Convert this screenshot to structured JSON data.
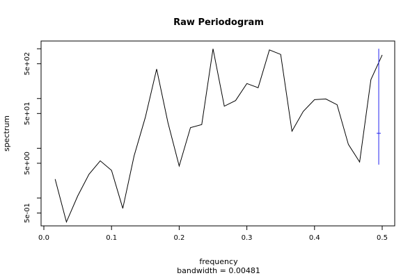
{
  "chart_data": {
    "type": "line",
    "title": "Raw Periodogram",
    "xlabel": "frequency",
    "sublabel": "bandwidth = 0.00481",
    "ylabel": "spectrum",
    "y_scale": "log",
    "xlim": [
      0.0,
      0.5
    ],
    "ylim": [
      0.2,
      1300
    ],
    "x_ticks": [
      {
        "value": 0.0,
        "label": "0.0"
      },
      {
        "value": 0.1,
        "label": "0.1"
      },
      {
        "value": 0.2,
        "label": "0.2"
      },
      {
        "value": 0.3,
        "label": "0.3"
      },
      {
        "value": 0.4,
        "label": "0.4"
      },
      {
        "value": 0.5,
        "label": "0.5"
      }
    ],
    "y_ticks": [
      {
        "value": 0.5,
        "label": "5e-01"
      },
      {
        "value": 1,
        "label": ""
      },
      {
        "value": 5,
        "label": "5e+00"
      },
      {
        "value": 10,
        "label": ""
      },
      {
        "value": 50,
        "label": "5e+01"
      },
      {
        "value": 100,
        "label": ""
      },
      {
        "value": 500,
        "label": "5e+02"
      },
      {
        "value": 1000,
        "label": ""
      }
    ],
    "series": [
      {
        "x": [
          0.0167,
          0.0333,
          0.05,
          0.0667,
          0.0833,
          0.1,
          0.1167,
          0.1333,
          0.15,
          0.1667,
          0.1833,
          0.2,
          0.2167,
          0.2333,
          0.25,
          0.2667,
          0.2833,
          0.3,
          0.3167,
          0.3333,
          0.35,
          0.3667,
          0.3833,
          0.4,
          0.4167,
          0.4333,
          0.45,
          0.4667,
          0.4833,
          0.5
        ],
        "y": [
          2.4,
          0.33,
          1.1,
          3.0,
          5.6,
          3.6,
          0.62,
          7.0,
          42,
          390,
          33,
          4.4,
          26,
          30,
          1000,
          70,
          91,
          200,
          165,
          950,
          770,
          22,
          55,
          95,
          98,
          75,
          12,
          5.3,
          240,
          750
        ]
      }
    ],
    "ci_bar": {
      "x": 0.4949,
      "low": 4.7,
      "mid": 20,
      "high": 1000
    },
    "colors": {
      "series": "#000000",
      "ci": "#2222ee",
      "axis": "#000000"
    }
  }
}
